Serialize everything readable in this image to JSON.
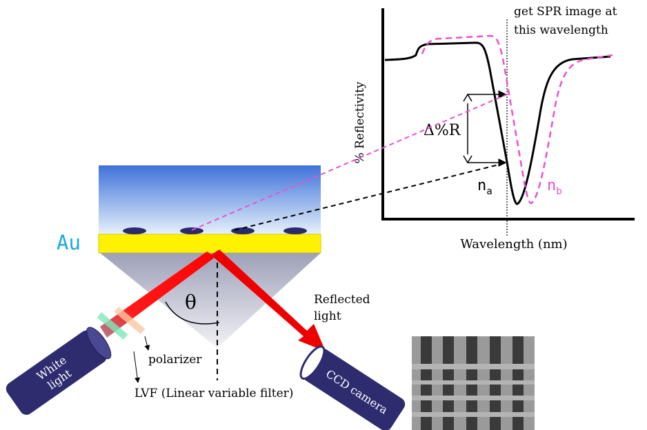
{
  "graph": {
    "note_lines": [
      "get SPR image at",
      "this wavelength"
    ],
    "y_axis_label": "% Reflectivity",
    "x_axis_label": "Wavelength (nm)",
    "delta_label": "Δ%R",
    "curve_a": {
      "main": "n",
      "sub": "a"
    },
    "curve_b": {
      "main": "n",
      "sub": "b"
    }
  },
  "setup": {
    "gold_label": "Au",
    "angle_label": "θ",
    "reflected_lines": [
      "Reflected",
      "light"
    ],
    "source_lines": [
      "White",
      "light"
    ],
    "polarizer_label": "polarizer",
    "filter_label": "LVF (Linear variable filter)",
    "camera_label": "CCD camera"
  }
}
